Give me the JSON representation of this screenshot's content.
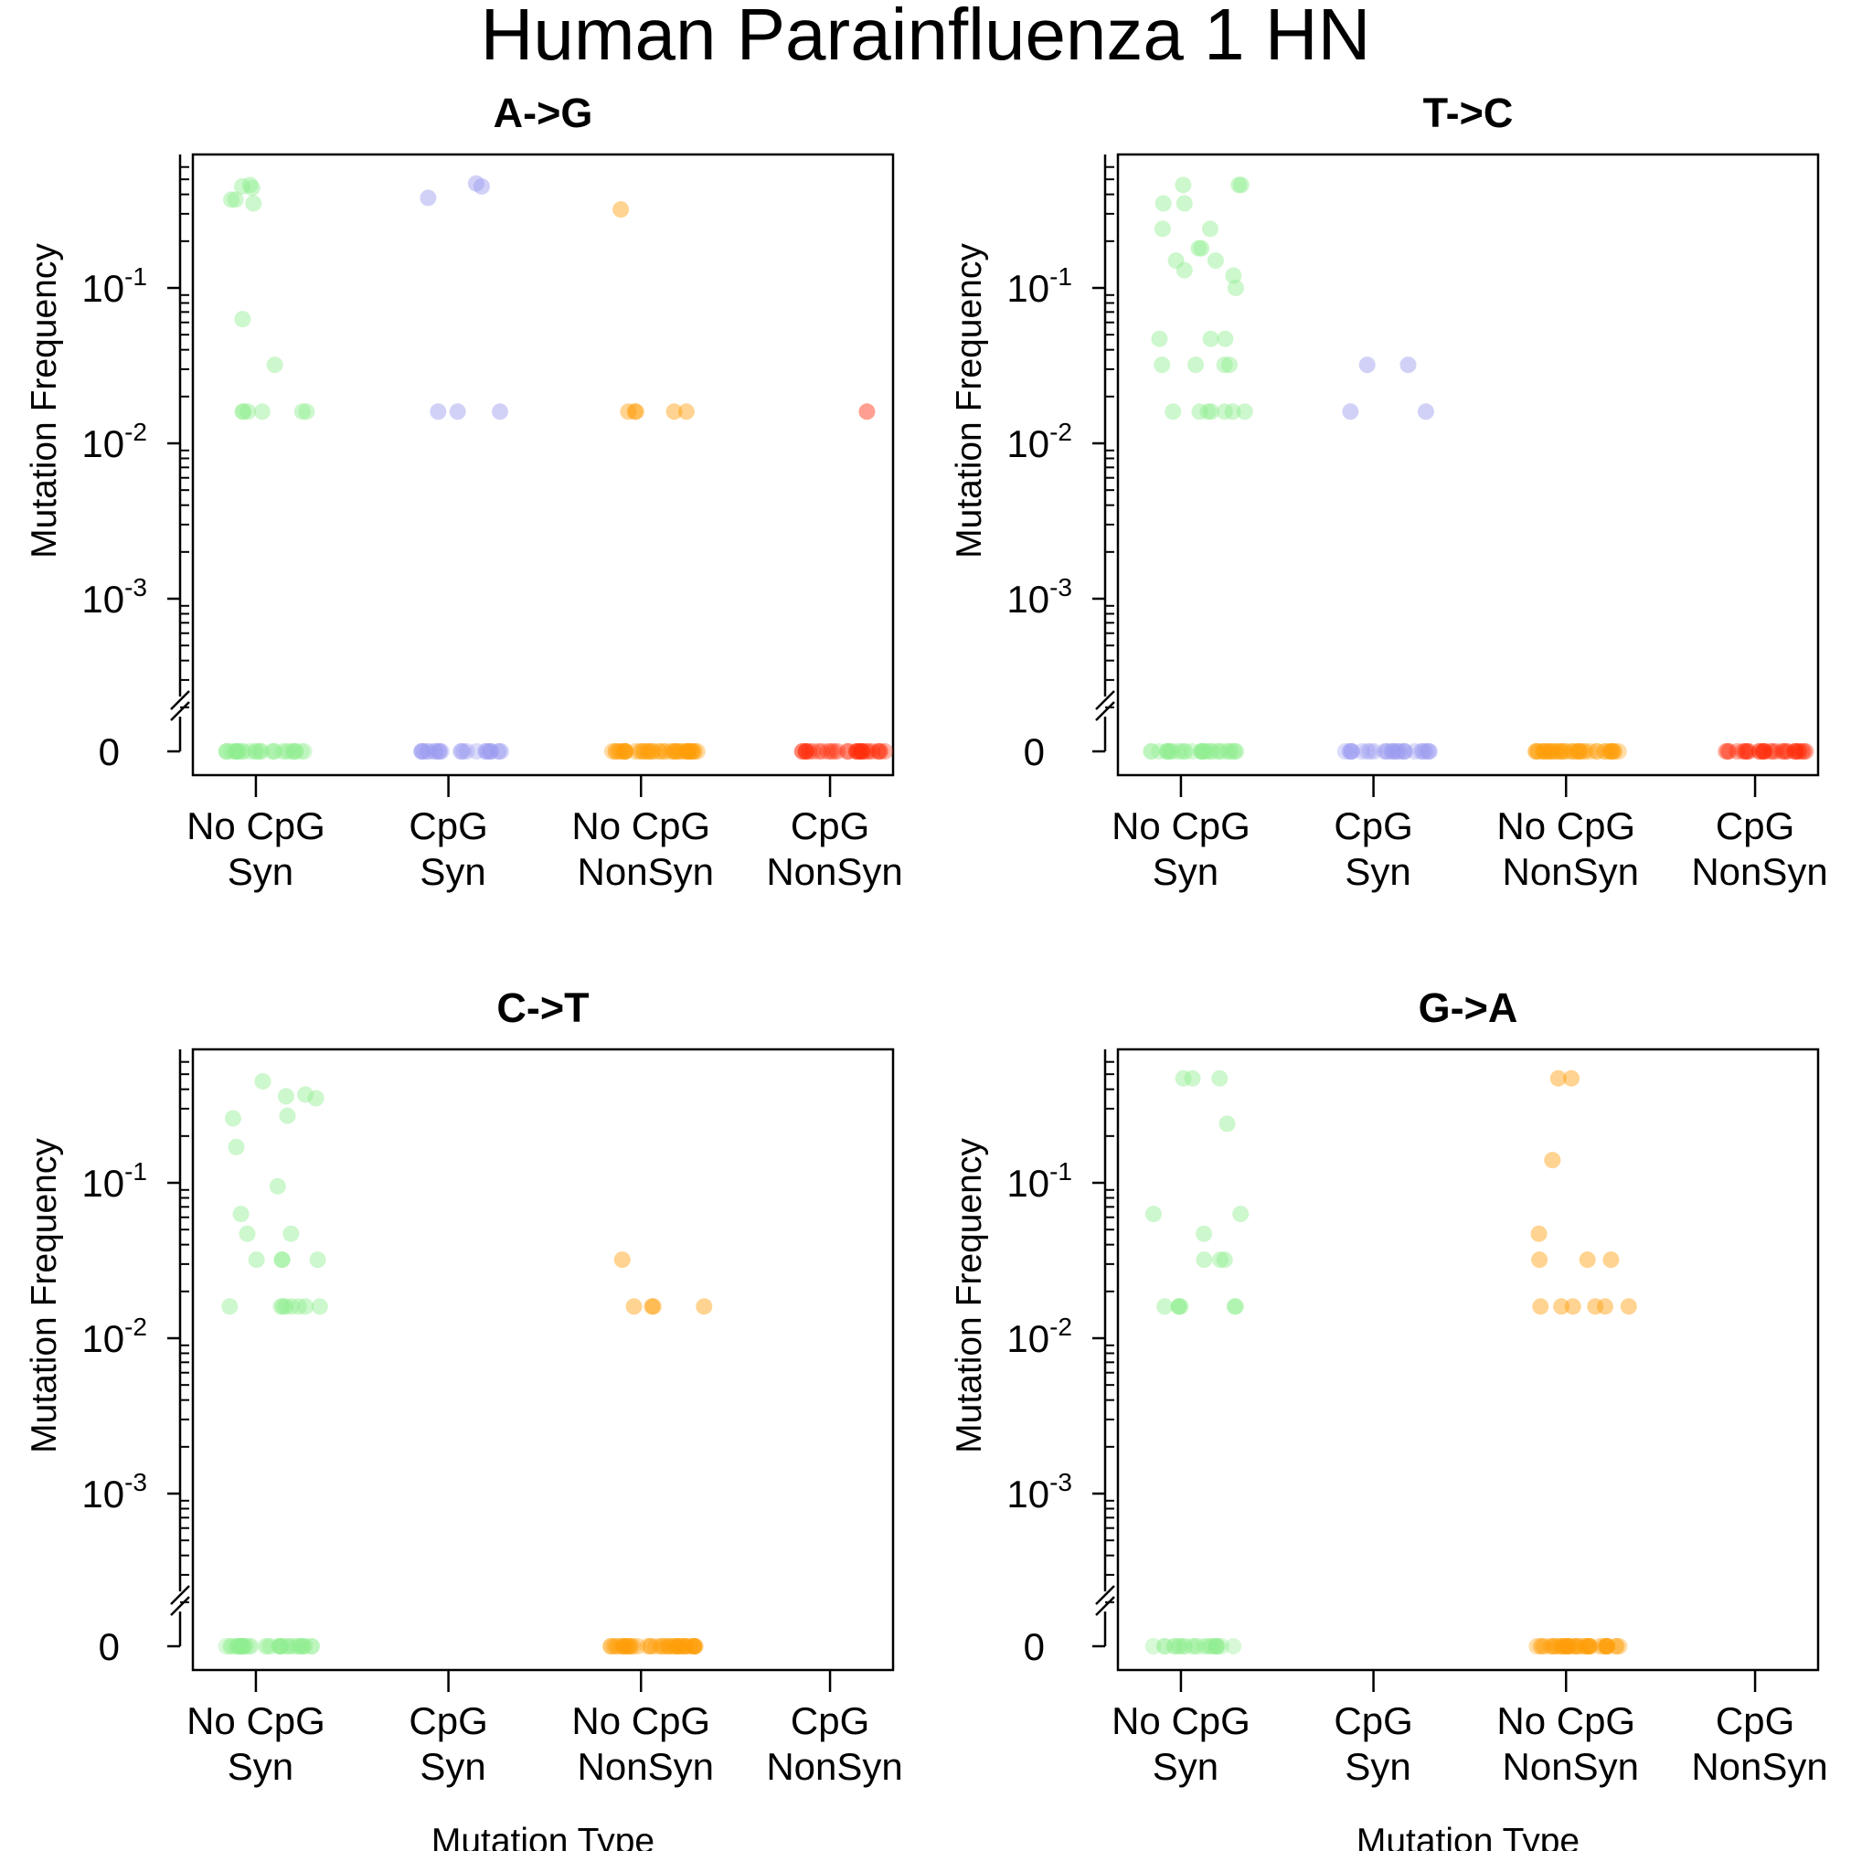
{
  "title": "Human Parainfluenza 1 HN",
  "categories": [
    [
      "No CpG",
      "Syn"
    ],
    [
      "CpG",
      "Syn"
    ],
    [
      "No CpG",
      "NonSyn"
    ],
    [
      "CpG",
      "NonSyn"
    ]
  ],
  "series_colors": [
    "#90EE90",
    "#9A9AF0",
    "#FF9E0A",
    "#FF2A0A"
  ],
  "y_ticks": [
    "10",
    "10",
    "10",
    "0"
  ],
  "y_tick_exponents": [
    "-1",
    "-2",
    "-3"
  ],
  "ylabel": "Mutation Frequency",
  "xlabel": "Mutation Type",
  "chart_data": [
    {
      "type": "scatter",
      "title": "A->G",
      "ylabel": "Mutation Frequency",
      "xlabel": "",
      "y_scale": "log10 with zero break",
      "ylim": [
        0.0002,
        0.7
      ],
      "grid": false,
      "series": [
        {
          "name": "No CpG Syn",
          "color": "#90EE90",
          "nonzero": [
            0.35,
            0.37,
            0.46,
            0.44,
            0.37,
            0.45,
            0.063,
            0.032,
            0.016,
            0.016,
            0.016,
            0.016,
            0.016,
            0.016
          ],
          "zero_count": 30
        },
        {
          "name": "CpG Syn",
          "color": "#9A9AF0",
          "nonzero": [
            0.45,
            0.38,
            0.47,
            0.016,
            0.016,
            0.016
          ],
          "zero_count": 26
        },
        {
          "name": "No CpG NonSyn",
          "color": "#FF9E0A",
          "nonzero": [
            0.32,
            0.016,
            0.016,
            0.016,
            0.016,
            0.016
          ],
          "zero_count": 44
        },
        {
          "name": "CpG NonSyn",
          "color": "#FF2A0A",
          "nonzero": [
            0.016
          ],
          "zero_count": 30
        }
      ]
    },
    {
      "type": "scatter",
      "title": "T->C",
      "ylabel": "Mutation Frequency",
      "xlabel": "",
      "y_scale": "log10 with zero break",
      "ylim": [
        0.0002,
        0.7
      ],
      "grid": false,
      "series": [
        {
          "name": "No CpG Syn",
          "color": "#90EE90",
          "nonzero": [
            0.46,
            0.46,
            0.46,
            0.35,
            0.35,
            0.24,
            0.24,
            0.18,
            0.18,
            0.15,
            0.15,
            0.12,
            0.13,
            0.1,
            0.047,
            0.047,
            0.047,
            0.032,
            0.032,
            0.032,
            0.032,
            0.016,
            0.016,
            0.016,
            0.016,
            0.016,
            0.016,
            0.016
          ],
          "zero_count": 32
        },
        {
          "name": "CpG Syn",
          "color": "#9A9AF0",
          "nonzero": [
            0.032,
            0.032,
            0.016,
            0.016
          ],
          "zero_count": 28
        },
        {
          "name": "No CpG NonSyn",
          "color": "#FF9E0A",
          "nonzero": [],
          "zero_count": 40
        },
        {
          "name": "CpG NonSyn",
          "color": "#FF2A0A",
          "nonzero": [],
          "zero_count": 30
        }
      ]
    },
    {
      "type": "scatter",
      "title": "C->T",
      "ylabel": "Mutation Frequency",
      "xlabel": "Mutation Type",
      "y_scale": "log10 with zero break",
      "ylim": [
        0.0002,
        0.7
      ],
      "grid": false,
      "series": [
        {
          "name": "No CpG Syn",
          "color": "#90EE90",
          "nonzero": [
            0.45,
            0.37,
            0.36,
            0.35,
            0.27,
            0.26,
            0.17,
            0.095,
            0.063,
            0.047,
            0.047,
            0.032,
            0.032,
            0.032,
            0.032,
            0.016,
            0.016,
            0.016,
            0.016,
            0.016,
            0.016,
            0.016,
            0.016
          ],
          "zero_count": 36
        },
        {
          "name": "CpG Syn",
          "color": "#9A9AF0",
          "nonzero": [],
          "zero_count": 0
        },
        {
          "name": "No CpG NonSyn",
          "color": "#FF9E0A",
          "nonzero": [
            0.032,
            0.016,
            0.016,
            0.016,
            0.016
          ],
          "zero_count": 44
        },
        {
          "name": "CpG NonSyn",
          "color": "#FF2A0A",
          "nonzero": [],
          "zero_count": 0
        }
      ]
    },
    {
      "type": "scatter",
      "title": "G->A",
      "ylabel": "Mutation Frequency",
      "xlabel": "Mutation Type",
      "y_scale": "log10 with zero break",
      "ylim": [
        0.0002,
        0.7
      ],
      "grid": false,
      "series": [
        {
          "name": "No CpG Syn",
          "color": "#90EE90",
          "nonzero": [
            0.47,
            0.47,
            0.47,
            0.24,
            0.063,
            0.063,
            0.047,
            0.032,
            0.032,
            0.032,
            0.016,
            0.016,
            0.016,
            0.016,
            0.016,
            0.016
          ],
          "zero_count": 22
        },
        {
          "name": "CpG Syn",
          "color": "#9A9AF0",
          "nonzero": [],
          "zero_count": 0
        },
        {
          "name": "No CpG NonSyn",
          "color": "#FF9E0A",
          "nonzero": [
            0.47,
            0.47,
            0.14,
            0.047,
            0.032,
            0.032,
            0.032,
            0.016,
            0.016,
            0.016,
            0.016,
            0.016,
            0.016
          ],
          "zero_count": 40
        },
        {
          "name": "CpG NonSyn",
          "color": "#FF2A0A",
          "nonzero": [],
          "zero_count": 0
        }
      ]
    }
  ]
}
